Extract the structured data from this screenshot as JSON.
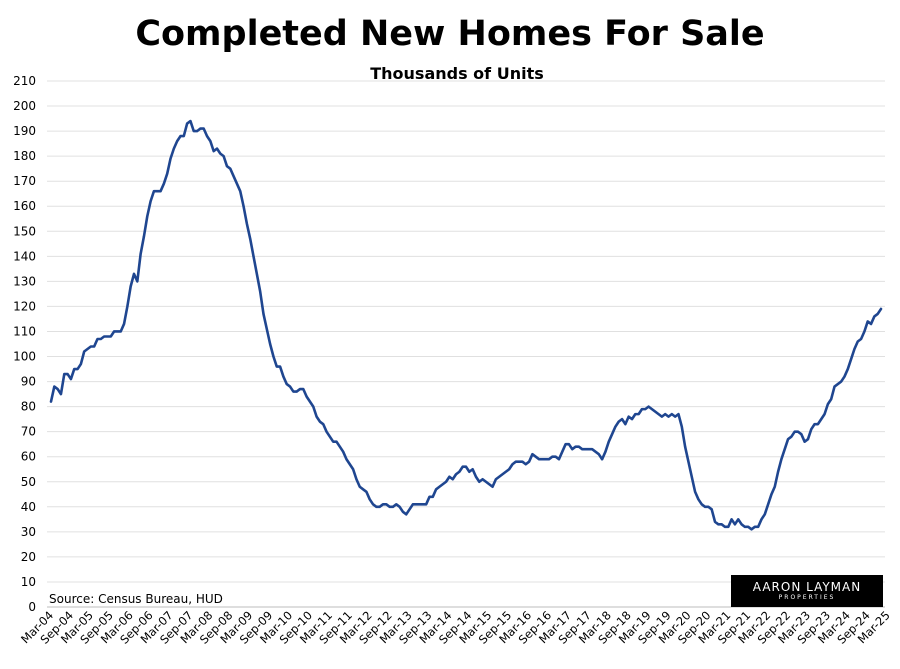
{
  "chart_data": {
    "type": "line",
    "title": "Completed New Homes For Sale",
    "subtitle": "Thousands of Units",
    "source": "Source: Census Bureau, HUD",
    "logo": {
      "line1": "AARON LAYMAN",
      "line2": "PROPERTIES"
    },
    "ylim": [
      0,
      210
    ],
    "yticks": [
      0,
      10,
      20,
      30,
      40,
      50,
      60,
      70,
      80,
      90,
      100,
      110,
      120,
      130,
      140,
      150,
      160,
      170,
      180,
      190,
      200,
      210
    ],
    "grid": true,
    "line_color": "#1f4690",
    "x_tick_labels": [
      "Mar-04",
      "Sep-04",
      "Mar-05",
      "Sep-05",
      "Mar-06",
      "Sep-06",
      "Mar-07",
      "Sep-07",
      "Mar-08",
      "Sep-08",
      "Mar-09",
      "Sep-09",
      "Mar-10",
      "Sep-10",
      "Mar-11",
      "Sep-11",
      "Mar-12",
      "Sep-12",
      "Mar-13",
      "Sep-13",
      "Mar-14",
      "Sep-14",
      "Mar-15",
      "Sep-15",
      "Mar-16",
      "Sep-16",
      "Mar-17",
      "Sep-17",
      "Mar-18",
      "Sep-18",
      "Mar-19",
      "Sep-19",
      "Mar-20",
      "Sep-20",
      "Mar-21",
      "Sep-21",
      "Mar-22",
      "Sep-22",
      "Mar-23",
      "Sep-23",
      "Mar-24",
      "Sep-24",
      "Mar-25"
    ],
    "series": [
      {
        "start": "Mar-04",
        "frequency": "monthly",
        "values": [
          82,
          88,
          87,
          85,
          93,
          93,
          91,
          95,
          95,
          97,
          102,
          103,
          104,
          104,
          107,
          107,
          108,
          108,
          108,
          110,
          110,
          110,
          113,
          120,
          128,
          133,
          130,
          141,
          148,
          156,
          162,
          166,
          166,
          166,
          169,
          173,
          179,
          183,
          186,
          188,
          188,
          193,
          194,
          190,
          190,
          191,
          191,
          188,
          186,
          182,
          183,
          181,
          180,
          176,
          175,
          172,
          169,
          166,
          160,
          153,
          147,
          140,
          133,
          126,
          117,
          111,
          105,
          100,
          96,
          96,
          92,
          89,
          88,
          86,
          86,
          87,
          87,
          84,
          82,
          80,
          76,
          74,
          73,
          70,
          68,
          66,
          66,
          64,
          62,
          59,
          57,
          55,
          51,
          48,
          47,
          46,
          43,
          41,
          40,
          40,
          41,
          41,
          40,
          40,
          41,
          40,
          38,
          37,
          39,
          41,
          41,
          41,
          41,
          41,
          44,
          44,
          47,
          48,
          49,
          50,
          52,
          51,
          53,
          54,
          56,
          56,
          54,
          55,
          52,
          50,
          51,
          50,
          49,
          48,
          51,
          52,
          53,
          54,
          55,
          57,
          58,
          58,
          58,
          57,
          58,
          61,
          60,
          59,
          59,
          59,
          59,
          60,
          60,
          59,
          62,
          65,
          65,
          63,
          64,
          64,
          63,
          63,
          63,
          63,
          62,
          61,
          59,
          62,
          66,
          69,
          72,
          74,
          75,
          73,
          76,
          75,
          77,
          77,
          79,
          79,
          80,
          79,
          78,
          77,
          76,
          77,
          76,
          77,
          76,
          77,
          72,
          64,
          58,
          52,
          46,
          43,
          41,
          40,
          40,
          39,
          34,
          33,
          33,
          32,
          32,
          35,
          33,
          35,
          33,
          32,
          32,
          31,
          32,
          32,
          35,
          37,
          41,
          45,
          48,
          54,
          59,
          63,
          67,
          68,
          70,
          70,
          69,
          66,
          67,
          71,
          73,
          73,
          75,
          77,
          81,
          83,
          88,
          89,
          90,
          92,
          95,
          99,
          103,
          106,
          107,
          110,
          114,
          113,
          116,
          117,
          119
        ]
      }
    ]
  }
}
